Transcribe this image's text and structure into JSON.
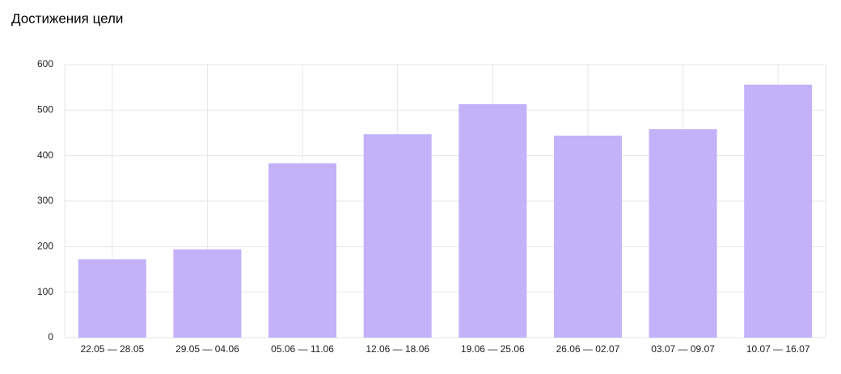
{
  "chart_data": {
    "type": "bar",
    "title": "Достижения цели",
    "categories": [
      "22.05 — 28.05",
      "29.05 — 04.06",
      "05.06 — 11.06",
      "12.06 — 18.06",
      "19.06 — 25.06",
      "26.06 — 02.07",
      "03.07 — 09.07",
      "10.07 — 16.07"
    ],
    "values": [
      172,
      194,
      383,
      447,
      513,
      444,
      458,
      556
    ],
    "color": "#c3b1f9",
    "ylim": [
      0,
      600
    ],
    "yticks": [
      0,
      100,
      200,
      300,
      400,
      500,
      600
    ],
    "grid": true
  }
}
